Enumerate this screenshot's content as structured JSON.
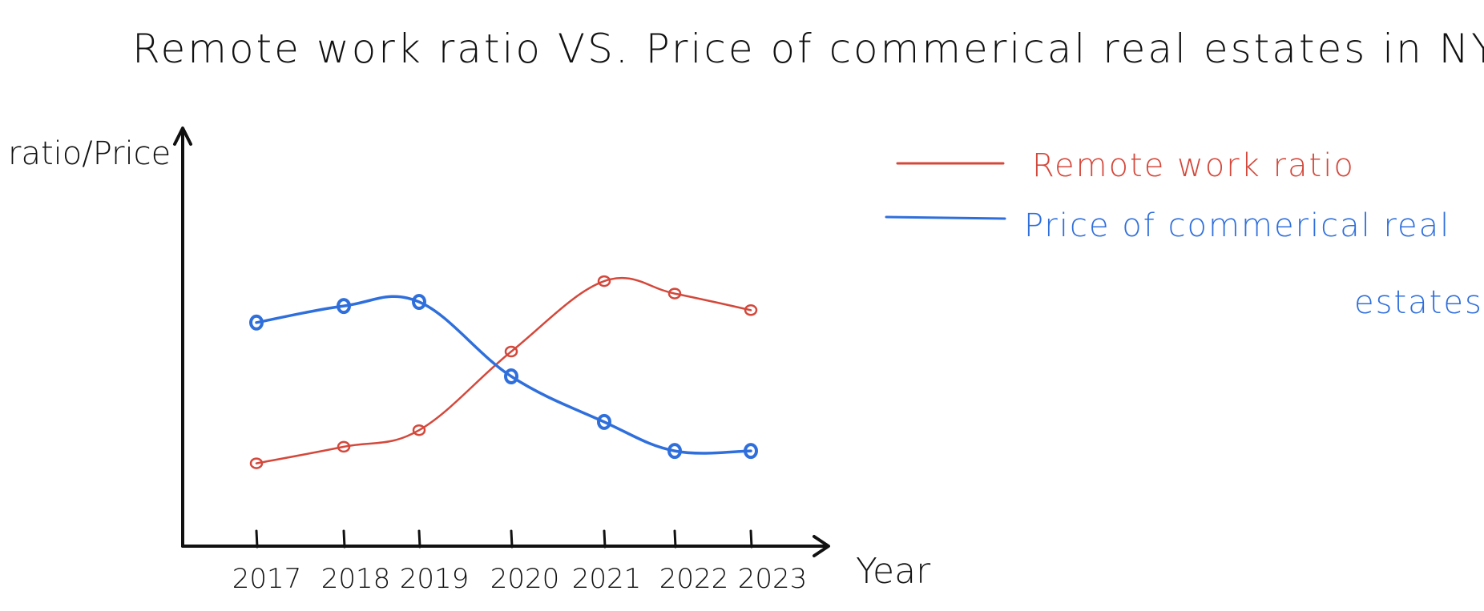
{
  "colors": {
    "ink": "#111111",
    "remote": "#d4483b",
    "price": "#2f6fdc"
  },
  "chart_data": {
    "type": "line",
    "title": "Remote work ratio VS. Price of commerical real estates in NY",
    "xlabel": "Year",
    "ylabel": "ratio/Price",
    "categories": [
      "2017",
      "2018",
      "2019",
      "2020",
      "2021",
      "2022",
      "2023"
    ],
    "ylim": [
      0,
      10
    ],
    "grid": false,
    "y_ticks_labeled": false,
    "legend_position": "top-right",
    "series": [
      {
        "name": "Remote work ratio",
        "color": "#d4483b",
        "values": [
          2.0,
          2.4,
          2.8,
          4.7,
          6.4,
          6.1,
          5.7
        ]
      },
      {
        "name": "Price of commerical real estates",
        "color": "#2f6fdc",
        "values": [
          5.4,
          5.8,
          5.9,
          4.1,
          3.0,
          2.3,
          2.3
        ]
      }
    ]
  }
}
